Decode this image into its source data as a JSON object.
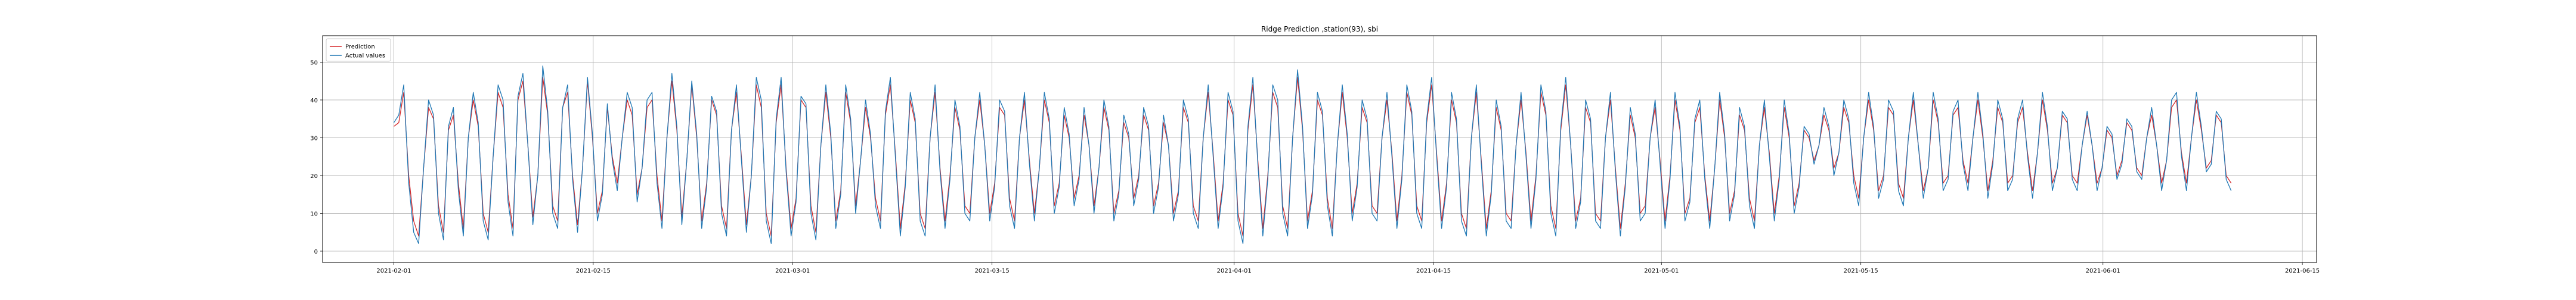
{
  "chart_data": {
    "type": "line",
    "title": "Ridge Prediction ,station(93), sbi",
    "xlabel": "",
    "ylabel": "",
    "x_start": "2021-02-01",
    "x_end": "2021-06-10",
    "xlim": [
      "2021-01-27",
      "2021-06-16"
    ],
    "ylim": [
      -3,
      57
    ],
    "x_ticks": [
      "2021-02-01",
      "2021-02-15",
      "2021-03-01",
      "2021-03-15",
      "2021-04-01",
      "2021-04-15",
      "2021-05-01",
      "2021-05-15",
      "2021-06-01",
      "2021-06-15"
    ],
    "y_ticks": [
      0,
      10,
      20,
      30,
      40,
      50
    ],
    "grid": true,
    "legend_position": "top-left",
    "series": [
      {
        "name": "Prediction",
        "color": "#d62728",
        "values": [
          33,
          34,
          42,
          20,
          8,
          4,
          22,
          38,
          35,
          12,
          5,
          32,
          36,
          18,
          6,
          30,
          40,
          33,
          10,
          5,
          25,
          42,
          38,
          15,
          6,
          40,
          45,
          28,
          9,
          20,
          46,
          36,
          12,
          8,
          38,
          42,
          20,
          7,
          22,
          45,
          30,
          10,
          16,
          38,
          25,
          18,
          30,
          40,
          36,
          15,
          22,
          38,
          40,
          20,
          8,
          30,
          45,
          32,
          9,
          24,
          44,
          30,
          8,
          18,
          40,
          36,
          12,
          6,
          32,
          42,
          25,
          7,
          20,
          44,
          38,
          10,
          4,
          34,
          44,
          22,
          6,
          14,
          40,
          38,
          12,
          5,
          28,
          42,
          30,
          8,
          16,
          42,
          34,
          12,
          24,
          38,
          30,
          14,
          8,
          36,
          44,
          26,
          6,
          18,
          40,
          34,
          10,
          6,
          30,
          42,
          22,
          8,
          20,
          38,
          32,
          12,
          10,
          30,
          40,
          28,
          10,
          18,
          38,
          36,
          14,
          8,
          30,
          40,
          24,
          10,
          22,
          40,
          34,
          12,
          18,
          36,
          30,
          14,
          20,
          36,
          28,
          12,
          22,
          38,
          32,
          10,
          16,
          34,
          30,
          14,
          20,
          36,
          32,
          12,
          18,
          34,
          28,
          10,
          16,
          38,
          34,
          12,
          8,
          30,
          42,
          26,
          8,
          18,
          40,
          36,
          10,
          4,
          32,
          44,
          24,
          6,
          20,
          42,
          38,
          12,
          6,
          30,
          46,
          32,
          8,
          16,
          40,
          36,
          14,
          6,
          28,
          42,
          30,
          10,
          18,
          38,
          34,
          12,
          10,
          30,
          40,
          26,
          8,
          20,
          42,
          36,
          12,
          8,
          34,
          44,
          26,
          8,
          18,
          40,
          34,
          10,
          6,
          30,
          42,
          24,
          6,
          16,
          38,
          32,
          10,
          8,
          28,
          40,
          26,
          8,
          20,
          42,
          36,
          12,
          6,
          32,
          44,
          28,
          8,
          14,
          38,
          34,
          10,
          8,
          30,
          40,
          22,
          6,
          18,
          36,
          30,
          10,
          12,
          30,
          38,
          24,
          8,
          20,
          40,
          32,
          10,
          14,
          34,
          38,
          20,
          8,
          22,
          40,
          30,
          10,
          16,
          36,
          32,
          14,
          8,
          28,
          38,
          26,
          10,
          20,
          38,
          30,
          12,
          18,
          32,
          30,
          24,
          28,
          36,
          32,
          22,
          26,
          38,
          34,
          20,
          14,
          30,
          40,
          32,
          16,
          20,
          38,
          36,
          18,
          14,
          30,
          40,
          28,
          16,
          22,
          40,
          34,
          18,
          20,
          36,
          38,
          24,
          18,
          30,
          40,
          30,
          16,
          24,
          38,
          34,
          18,
          20,
          34,
          38,
          26,
          16,
          26,
          40,
          32,
          18,
          22,
          36,
          34,
          20,
          18,
          28,
          36,
          28,
          18,
          22,
          32,
          30,
          20,
          24,
          34,
          32,
          22,
          20,
          30,
          36,
          28,
          18,
          24,
          38,
          40,
          26,
          18,
          30,
          40,
          32,
          22,
          24,
          36,
          34,
          20,
          18
        ]
      },
      {
        "name": "Actual values",
        "color": "#1f77b4",
        "values": [
          34,
          36,
          44,
          18,
          5,
          2,
          22,
          40,
          36,
          10,
          3,
          33,
          38,
          16,
          4,
          30,
          42,
          34,
          8,
          3,
          25,
          44,
          40,
          13,
          4,
          41,
          47,
          28,
          7,
          20,
          49,
          37,
          10,
          6,
          38,
          44,
          19,
          5,
          22,
          46,
          31,
          8,
          15,
          39,
          24,
          16,
          30,
          42,
          38,
          13,
          22,
          40,
          42,
          18,
          6,
          30,
          47,
          33,
          7,
          24,
          45,
          31,
          6,
          17,
          41,
          37,
          10,
          4,
          32,
          44,
          24,
          5,
          20,
          46,
          40,
          8,
          2,
          35,
          46,
          21,
          4,
          13,
          41,
          39,
          10,
          3,
          28,
          44,
          31,
          6,
          15,
          44,
          35,
          10,
          24,
          40,
          31,
          12,
          6,
          37,
          46,
          25,
          4,
          17,
          42,
          35,
          8,
          4,
          30,
          44,
          21,
          6,
          19,
          40,
          33,
          10,
          8,
          30,
          42,
          28,
          8,
          17,
          40,
          37,
          12,
          6,
          30,
          42,
          23,
          8,
          22,
          42,
          35,
          10,
          17,
          38,
          31,
          12,
          19,
          38,
          28,
          10,
          22,
          40,
          33,
          8,
          15,
          36,
          31,
          12,
          19,
          38,
          33,
          10,
          17,
          36,
          28,
          8,
          15,
          40,
          35,
          10,
          6,
          30,
          44,
          25,
          6,
          17,
          42,
          37,
          8,
          2,
          33,
          46,
          23,
          4,
          19,
          44,
          40,
          10,
          4,
          30,
          48,
          33,
          6,
          15,
          42,
          37,
          12,
          4,
          28,
          44,
          31,
          8,
          17,
          40,
          35,
          10,
          8,
          30,
          42,
          25,
          6,
          19,
          44,
          37,
          10,
          6,
          35,
          46,
          25,
          6,
          17,
          42,
          35,
          8,
          4,
          30,
          44,
          23,
          4,
          15,
          40,
          33,
          8,
          6,
          28,
          42,
          25,
          6,
          19,
          44,
          37,
          10,
          4,
          33,
          46,
          28,
          6,
          13,
          40,
          35,
          8,
          6,
          30,
          42,
          21,
          4,
          17,
          38,
          31,
          8,
          10,
          30,
          40,
          23,
          6,
          19,
          42,
          33,
          8,
          13,
          35,
          40,
          19,
          6,
          22,
          42,
          31,
          8,
          15,
          38,
          33,
          12,
          6,
          28,
          40,
          25,
          8,
          19,
          40,
          31,
          10,
          17,
          33,
          31,
          23,
          28,
          38,
          33,
          20,
          26,
          40,
          35,
          18,
          12,
          30,
          42,
          33,
          14,
          19,
          40,
          37,
          16,
          12,
          30,
          42,
          28,
          14,
          22,
          42,
          35,
          16,
          19,
          37,
          40,
          23,
          16,
          30,
          42,
          31,
          14,
          23,
          40,
          35,
          16,
          19,
          35,
          40,
          25,
          14,
          26,
          42,
          33,
          16,
          22,
          37,
          35,
          19,
          16,
          28,
          37,
          28,
          16,
          22,
          33,
          31,
          19,
          23,
          35,
          33,
          21,
          19,
          30,
          38,
          28,
          16,
          24,
          40,
          42,
          25,
          16,
          30,
          42,
          33,
          21,
          23,
          37,
          35,
          19,
          16
        ]
      }
    ]
  }
}
